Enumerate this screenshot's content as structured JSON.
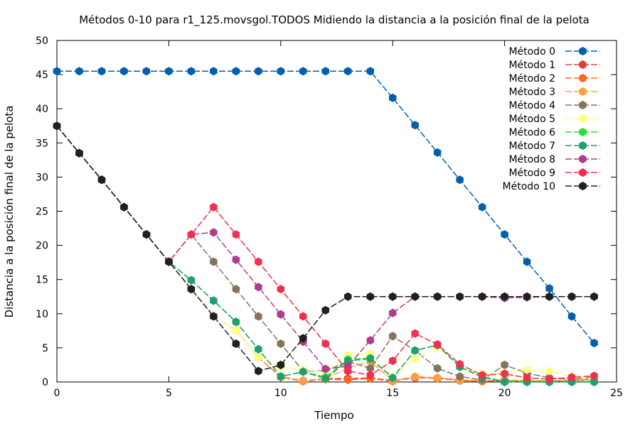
{
  "chart_data": {
    "type": "line",
    "title": "Métodos 0-10 para r1_125.movsgol.TODOS Midiendo la distancia a la posición final de la pelota",
    "xlabel": "Tiempo",
    "ylabel": "Distancia a la posición final de la pelota",
    "xlim": [
      0,
      25
    ],
    "ylim": [
      0,
      50
    ],
    "xticks": [
      0,
      5,
      10,
      15,
      20,
      25
    ],
    "yticks": [
      0,
      5,
      10,
      15,
      20,
      25,
      30,
      35,
      40,
      45,
      50
    ],
    "grid": false,
    "legend_position": "top-right",
    "x": [
      0,
      1,
      2,
      3,
      4,
      5,
      6,
      7,
      8,
      9,
      10,
      11,
      12,
      13,
      14,
      15,
      16,
      17,
      18,
      19,
      20,
      21,
      22,
      23,
      24
    ],
    "series": [
      {
        "name": "Método 0",
        "color": "#0060ad",
        "values": [
          45.5,
          45.5,
          45.5,
          45.5,
          45.5,
          45.5,
          45.5,
          45.5,
          45.5,
          45.5,
          45.5,
          45.5,
          45.5,
          45.5,
          45.5,
          41.6,
          37.6,
          33.6,
          29.6,
          25.6,
          21.6,
          17.6,
          13.7,
          9.6,
          5.7
        ]
      },
      {
        "name": "Método 1",
        "color": "#dd4040",
        "values": [
          37.5,
          33.5,
          29.6,
          25.6,
          21.6,
          17.6,
          13.6,
          9.7,
          7.6,
          3.6,
          0.8,
          0.2,
          0.5,
          0.5,
          0.6,
          0.2,
          0.6,
          0.6,
          0.3,
          0.1,
          0.2,
          0.1,
          0.1,
          0.2,
          0.5
        ]
      },
      {
        "name": "Método 2",
        "color": "#ff6820",
        "values": [
          37.5,
          33.5,
          29.6,
          25.6,
          21.6,
          17.6,
          13.6,
          9.7,
          7.6,
          3.6,
          0.7,
          0.1,
          0.4,
          0.3,
          0.5,
          0.1,
          0.7,
          0.5,
          0.2,
          0.1,
          0.2,
          0.1,
          0.1,
          0.2,
          0.4
        ]
      },
      {
        "name": "Método 3",
        "color": "#ffa040",
        "values": [
          37.5,
          33.5,
          29.6,
          25.6,
          21.6,
          17.6,
          13.6,
          9.7,
          7.6,
          3.6,
          0.8,
          0.2,
          0.5,
          2.0,
          3.0,
          0.2,
          0.8,
          0.6,
          0.3,
          0.2,
          0.3,
          0.2,
          0.2,
          0.3,
          0.5
        ]
      },
      {
        "name": "Método 4",
        "color": "#86735b",
        "values": [
          37.5,
          33.5,
          29.6,
          25.6,
          21.6,
          17.6,
          21.6,
          17.6,
          13.6,
          9.6,
          5.6,
          1.6,
          1.6,
          3.0,
          2.0,
          6.7,
          4.6,
          2.0,
          0.8,
          0.3,
          2.5,
          1.3,
          0.6,
          0.4,
          0.8
        ]
      },
      {
        "name": "Método 5",
        "color": "#ffff80",
        "values": [
          37.5,
          33.5,
          29.6,
          25.6,
          21.6,
          17.6,
          13.6,
          9.7,
          7.6,
          3.6,
          2.2,
          1.8,
          1.4,
          3.9,
          4.1,
          0.8,
          3.4,
          5.1,
          2.3,
          1.2,
          1.3,
          1.8,
          1.6,
          0.8,
          0.5
        ]
      },
      {
        "name": "Método 6",
        "color": "#30e030",
        "values": [
          37.5,
          33.5,
          29.6,
          25.6,
          21.6,
          17.6,
          14.9,
          11.9,
          8.8,
          4.8,
          0.8,
          1.5,
          0.7,
          3.3,
          3.5,
          0.6,
          4.6,
          5.4,
          2.2,
          0.8,
          0.1,
          0.1,
          0.1,
          0.1,
          0.1
        ]
      },
      {
        "name": "Método 7",
        "color": "#20a070",
        "values": [
          37.5,
          33.5,
          29.6,
          25.6,
          21.6,
          17.6,
          14.9,
          11.9,
          8.8,
          4.8,
          0.8,
          1.5,
          0.5,
          3.1,
          3.4,
          0.6,
          4.6,
          5.4,
          2.2,
          0.7,
          0.0,
          0.0,
          0.0,
          0.0,
          0.0
        ]
      },
      {
        "name": "Método 8",
        "color": "#b03c90",
        "values": [
          37.5,
          33.5,
          29.6,
          25.6,
          21.6,
          17.6,
          21.6,
          21.9,
          17.9,
          13.9,
          9.9,
          5.9,
          1.9,
          2.3,
          6.1,
          10.1,
          12.5,
          12.5,
          12.5,
          12.5,
          12.3,
          12.4,
          12.5,
          12.5,
          12.5
        ]
      },
      {
        "name": "Método 9",
        "color": "#f03050",
        "values": [
          37.5,
          33.5,
          29.6,
          25.6,
          21.6,
          17.6,
          21.6,
          25.6,
          21.6,
          17.6,
          13.6,
          9.6,
          5.6,
          1.6,
          1.0,
          3.1,
          7.1,
          5.5,
          2.6,
          1.0,
          1.2,
          0.6,
          0.4,
          0.7,
          0.9
        ]
      },
      {
        "name": "Método 10",
        "color": "#202020",
        "values": [
          37.5,
          33.5,
          29.6,
          25.6,
          21.6,
          17.6,
          13.6,
          9.6,
          5.6,
          1.6,
          2.5,
          6.4,
          10.5,
          12.5,
          12.5,
          12.5,
          12.5,
          12.5,
          12.5,
          12.5,
          12.5,
          12.5,
          12.5,
          12.5,
          12.5
        ]
      }
    ]
  }
}
